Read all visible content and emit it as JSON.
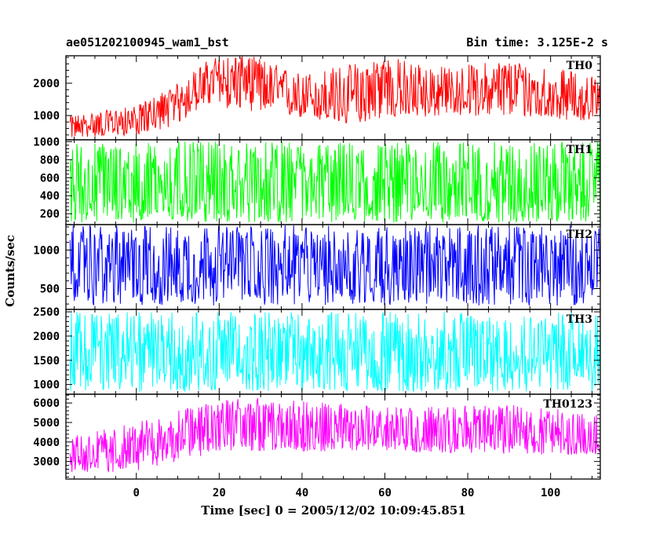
{
  "title_left": "ae051202100945_wam1_bst",
  "title_right": "Bin time: 3.125E-2 s",
  "xlabel": "Time [sec] 0 = 2005/12/02 10:09:45.851",
  "ylabel": "Counts/sec",
  "chart_data": {
    "type": "line",
    "xlim": [
      -17,
      112
    ],
    "x_ticks": [
      0,
      20,
      40,
      60,
      80,
      100
    ],
    "x_tick_labels": [
      "0",
      "20",
      "40",
      "60",
      "80",
      "100"
    ],
    "bin_time_s": 0.03125,
    "data_x_range": [
      -16,
      112
    ],
    "series": [
      {
        "name": "TH0",
        "color": "#ff0000",
        "ylim": [
          250,
          2850
        ],
        "y_ticks": [
          1000,
          2000
        ],
        "y_tick_labels": [
          "1000",
          "2000"
        ],
        "envelope_min": [
          [
            -16,
            300
          ],
          [
            0,
            400
          ],
          [
            10,
            700
          ],
          [
            16,
            1300
          ],
          [
            30,
            1100
          ],
          [
            50,
            700
          ],
          [
            60,
            900
          ],
          [
            80,
            1000
          ],
          [
            100,
            900
          ],
          [
            112,
            800
          ]
        ],
        "envelope_max": [
          [
            -16,
            1000
          ],
          [
            0,
            1300
          ],
          [
            10,
            2000
          ],
          [
            18,
            2800
          ],
          [
            27,
            2900
          ],
          [
            40,
            2300
          ],
          [
            60,
            2850
          ],
          [
            75,
            2500
          ],
          [
            90,
            2750
          ],
          [
            112,
            2200
          ]
        ],
        "trend": [
          [
            -16,
            650
          ],
          [
            -5,
            750
          ],
          [
            5,
            1000
          ],
          [
            12,
            1600
          ],
          [
            18,
            2100
          ],
          [
            27,
            2200
          ],
          [
            35,
            1600
          ],
          [
            45,
            1500
          ],
          [
            52,
            1300
          ],
          [
            60,
            2050
          ],
          [
            65,
            1550
          ],
          [
            80,
            1600
          ],
          [
            90,
            1800
          ],
          [
            100,
            1550
          ],
          [
            112,
            1350
          ]
        ]
      },
      {
        "name": "TH1",
        "color": "#00ff00",
        "ylim": [
          80,
          1020
        ],
        "y_ticks": [
          200,
          400,
          600,
          800,
          1000
        ],
        "y_tick_labels": [
          "200",
          "400",
          "600",
          "800",
          "1000"
        ],
        "envelope_min": [
          [
            -16,
            100
          ],
          [
            112,
            100
          ]
        ],
        "envelope_max": [
          [
            -16,
            1000
          ],
          [
            112,
            1000
          ]
        ],
        "trend": [
          [
            -16,
            480
          ],
          [
            112,
            480
          ]
        ]
      },
      {
        "name": "TH2",
        "color": "#0000ff",
        "ylim": [
          230,
          1330
        ],
        "y_ticks": [
          500,
          1000
        ],
        "y_tick_labels": [
          "500",
          "1000"
        ],
        "envelope_min": [
          [
            -16,
            280
          ],
          [
            112,
            280
          ]
        ],
        "envelope_max": [
          [
            -16,
            1320
          ],
          [
            112,
            1320
          ]
        ],
        "trend": [
          [
            -16,
            780
          ],
          [
            112,
            780
          ]
        ]
      },
      {
        "name": "TH3",
        "color": "#00ffff",
        "ylim": [
          800,
          2550
        ],
        "y_ticks": [
          1000,
          1500,
          2000,
          2500
        ],
        "y_tick_labels": [
          "1000",
          "1500",
          "2000",
          "2500"
        ],
        "envelope_min": [
          [
            -16,
            850
          ],
          [
            112,
            850
          ]
        ],
        "envelope_max": [
          [
            -16,
            2500
          ],
          [
            112,
            2500
          ]
        ],
        "trend": [
          [
            -16,
            1650
          ],
          [
            112,
            1650
          ]
        ]
      },
      {
        "name": "TH0123",
        "color": "#ff00ff",
        "ylim": [
          2100,
          6450
        ],
        "y_ticks": [
          3000,
          4000,
          5000,
          6000
        ],
        "y_tick_labels": [
          "3000",
          "4000",
          "5000",
          "6000"
        ],
        "envelope_min": [
          [
            -16,
            2300
          ],
          [
            0,
            2500
          ],
          [
            20,
            3500
          ],
          [
            60,
            3500
          ],
          [
            112,
            3300
          ]
        ],
        "envelope_max": [
          [
            -16,
            4300
          ],
          [
            0,
            5000
          ],
          [
            20,
            6300
          ],
          [
            27,
            6300
          ],
          [
            60,
            5800
          ],
          [
            90,
            5900
          ],
          [
            112,
            5600
          ]
        ],
        "trend": [
          [
            -16,
            3200
          ],
          [
            -5,
            3400
          ],
          [
            5,
            3800
          ],
          [
            12,
            4300
          ],
          [
            18,
            5000
          ],
          [
            27,
            5100
          ],
          [
            35,
            4500
          ],
          [
            45,
            4400
          ],
          [
            52,
            4200
          ],
          [
            60,
            4900
          ],
          [
            65,
            4400
          ],
          [
            80,
            4500
          ],
          [
            90,
            4700
          ],
          [
            100,
            4400
          ],
          [
            112,
            4200
          ]
        ]
      }
    ]
  }
}
